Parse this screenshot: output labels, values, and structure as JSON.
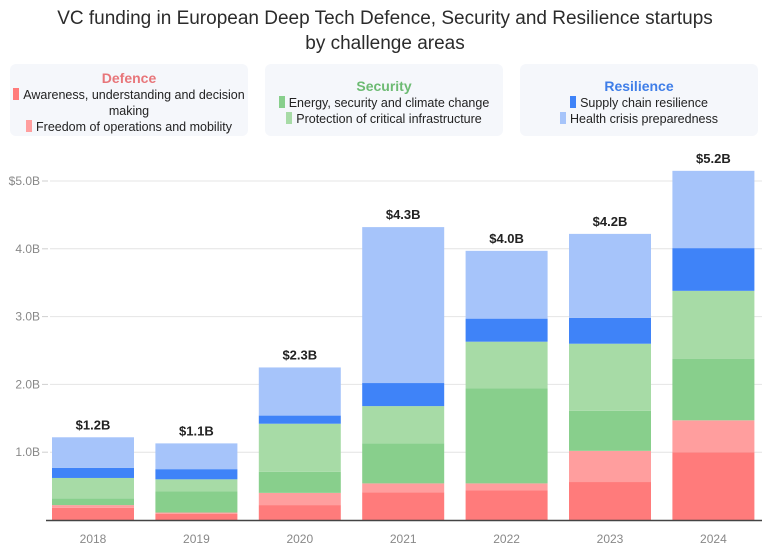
{
  "chart_data": {
    "type": "bar",
    "stacked": true,
    "title": "VC funding in European Deep Tech Defence, Security and Resilience startups by challenge areas",
    "title_lines": [
      "VC funding in European Deep Tech Defence, Security and Resilience startups",
      "by challenge areas"
    ],
    "xlabel": "",
    "ylabel": "",
    "categories": [
      "2018",
      "2019",
      "2020",
      "2021",
      "2022",
      "2023",
      "2024"
    ],
    "totals_labels": [
      "$1.2B",
      "$1.1B",
      "$2.3B",
      "$4.3B",
      "$4.0B",
      "$4.2B",
      "$5.2B"
    ],
    "ylim": [
      0,
      5.2
    ],
    "yticks": [
      1.0,
      2.0,
      3.0,
      4.0,
      5.0
    ],
    "ytick_labels": [
      "1.0B",
      "2.0B",
      "3.0B",
      "4.0B",
      "$5.0B"
    ],
    "grid": true,
    "legend_groups": [
      {
        "name": "Defence",
        "color": "#e8767a",
        "series": [
          "Awareness, understanding and decision making",
          "Freedom of operations and mobility"
        ]
      },
      {
        "name": "Security",
        "color": "#6dbb73",
        "series": [
          "Energy, security and climate change",
          "Protection of critical infrastructure"
        ]
      },
      {
        "name": "Resilience",
        "color": "#3f7ee8",
        "series": [
          "Supply chain resilience",
          "Health crisis preparedness"
        ]
      }
    ],
    "series": [
      {
        "name": "Awareness, understanding and decision making",
        "group": "Defence",
        "color": "#ff7b7b",
        "values": [
          0.18,
          0.09,
          0.22,
          0.41,
          0.44,
          0.56,
          1.0
        ]
      },
      {
        "name": "Freedom of operations and mobility",
        "group": "Defence",
        "color": "#ff9e9e",
        "values": [
          0.04,
          0.02,
          0.18,
          0.13,
          0.1,
          0.46,
          0.47
        ]
      },
      {
        "name": "Energy, security and climate change",
        "group": "Security",
        "color": "#88cf8c",
        "values": [
          0.1,
          0.31,
          0.31,
          0.59,
          1.4,
          0.59,
          0.91
        ]
      },
      {
        "name": "Protection of critical infrastructure",
        "group": "Security",
        "color": "#a7dba6",
        "values": [
          0.3,
          0.18,
          0.71,
          0.55,
          0.69,
          0.99,
          1.0
        ]
      },
      {
        "name": "Supply chain resilience",
        "group": "Resilience",
        "color": "#3f83f8",
        "values": [
          0.15,
          0.15,
          0.12,
          0.34,
          0.34,
          0.38,
          0.63
        ]
      },
      {
        "name": "Health crisis preparedness",
        "group": "Resilience",
        "color": "#a6c4fa",
        "values": [
          0.45,
          0.38,
          0.71,
          2.3,
          1.0,
          1.24,
          1.14
        ]
      }
    ]
  }
}
